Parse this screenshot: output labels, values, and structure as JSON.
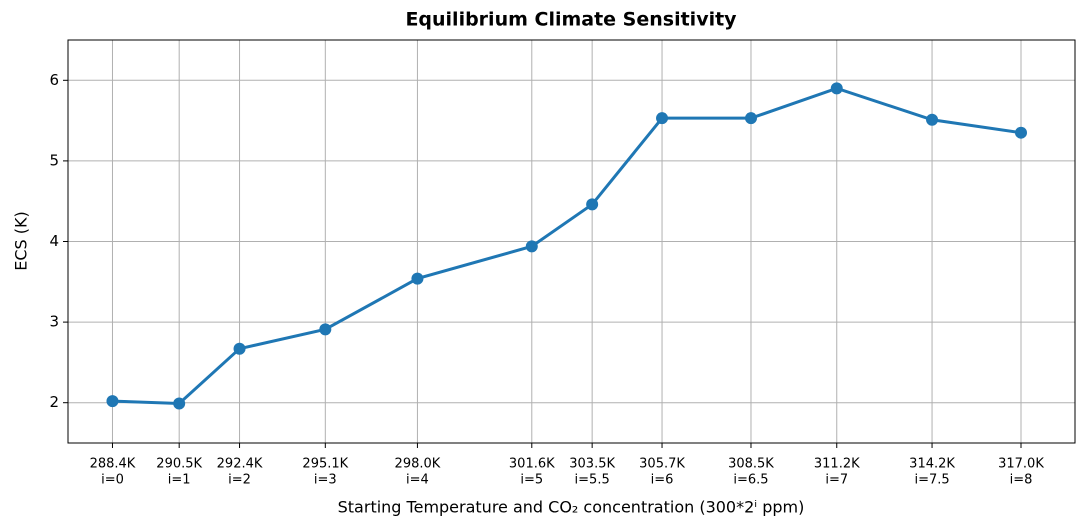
{
  "chart_data": {
    "type": "line",
    "title": "Equilibrium Climate Sensitivity",
    "xlabel": "Starting Temperature and CO₂ concentration (300*2ⁱ ppm)",
    "ylabel": "ECS (K)",
    "x": [
      288.4,
      290.5,
      292.4,
      295.1,
      298.0,
      301.6,
      303.5,
      305.7,
      308.5,
      311.2,
      314.2,
      317.0
    ],
    "series": [
      {
        "name": "ECS",
        "color": "#1f77b4",
        "values": [
          2.02,
          1.99,
          2.67,
          2.91,
          3.54,
          3.94,
          4.46,
          5.53,
          5.53,
          5.9,
          5.51,
          5.35
        ]
      }
    ],
    "xlim": [
      287.0,
      318.7
    ],
    "ylim": [
      1.5,
      6.5
    ],
    "xticks": [
      {
        "value": 288.4,
        "label": "288.4K",
        "sublabel": "i=0"
      },
      {
        "value": 290.5,
        "label": "290.5K",
        "sublabel": "i=1"
      },
      {
        "value": 292.4,
        "label": "292.4K",
        "sublabel": "i=2"
      },
      {
        "value": 295.1,
        "label": "295.1K",
        "sublabel": "i=3"
      },
      {
        "value": 298.0,
        "label": "298.0K",
        "sublabel": "i=4"
      },
      {
        "value": 301.6,
        "label": "301.6K",
        "sublabel": "i=5"
      },
      {
        "value": 303.5,
        "label": "303.5K",
        "sublabel": "i=5.5"
      },
      {
        "value": 305.7,
        "label": "305.7K",
        "sublabel": "i=6"
      },
      {
        "value": 308.5,
        "label": "308.5K",
        "sublabel": "i=6.5"
      },
      {
        "value": 311.2,
        "label": "311.2K",
        "sublabel": "i=7"
      },
      {
        "value": 314.2,
        "label": "314.2K",
        "sublabel": "i=7.5"
      },
      {
        "value": 317.0,
        "label": "317.0K",
        "sublabel": "i=8"
      }
    ],
    "yticks": [
      2,
      3,
      4,
      5,
      6
    ],
    "grid": true
  }
}
